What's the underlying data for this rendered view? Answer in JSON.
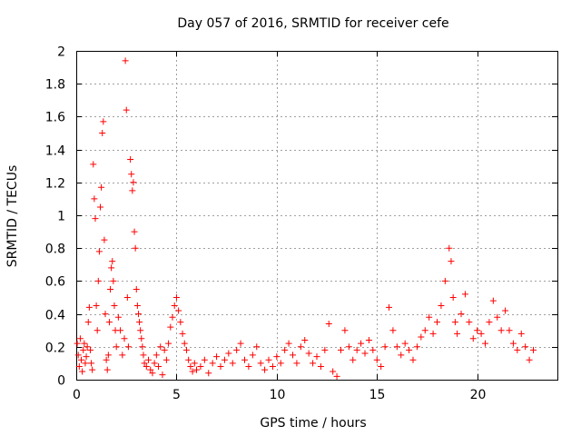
{
  "chart_data": {
    "type": "scatter",
    "title": "Day 057 of 2016, SRMTID for receiver cefe",
    "xlabel": "GPS time / hours",
    "ylabel": "SRMTID / TECUs",
    "xlim": [
      0,
      24
    ],
    "ylim": [
      0,
      2
    ],
    "xticks": [
      "0",
      "5",
      "10",
      "15",
      "20"
    ],
    "yticks": [
      "0",
      "0.2",
      "0.4",
      "0.6",
      "0.8",
      "1",
      "1.2",
      "1.4",
      "1.6",
      "1.8",
      "2"
    ],
    "grid": true,
    "marker": "+",
    "series": [
      {
        "name": "SRMTID",
        "color": "#ff0000",
        "points": [
          [
            0.05,
            0.22
          ],
          [
            0.1,
            0.15
          ],
          [
            0.15,
            0.08
          ],
          [
            0.2,
            0.25
          ],
          [
            0.25,
            0.12
          ],
          [
            0.3,
            0.05
          ],
          [
            0.35,
            0.18
          ],
          [
            0.4,
            0.22
          ],
          [
            0.45,
            0.1
          ],
          [
            0.5,
            0.14
          ],
          [
            0.55,
            0.2
          ],
          [
            0.6,
            0.35
          ],
          [
            0.65,
            0.44
          ],
          [
            0.7,
            0.18
          ],
          [
            0.75,
            0.1
          ],
          [
            0.8,
            0.06
          ],
          [
            0.85,
            1.31
          ],
          [
            0.9,
            1.1
          ],
          [
            0.95,
            0.98
          ],
          [
            1.0,
            0.45
          ],
          [
            1.05,
            0.3
          ],
          [
            1.1,
            0.6
          ],
          [
            1.15,
            0.78
          ],
          [
            1.2,
            1.05
          ],
          [
            1.25,
            1.17
          ],
          [
            1.3,
            1.5
          ],
          [
            1.35,
            1.57
          ],
          [
            1.4,
            0.85
          ],
          [
            1.45,
            0.4
          ],
          [
            1.5,
            0.12
          ],
          [
            1.55,
            0.06
          ],
          [
            1.6,
            0.15
          ],
          [
            1.65,
            0.35
          ],
          [
            1.7,
            0.55
          ],
          [
            1.75,
            0.68
          ],
          [
            1.8,
            0.72
          ],
          [
            1.85,
            0.6
          ],
          [
            1.9,
            0.45
          ],
          [
            1.95,
            0.3
          ],
          [
            2.0,
            0.2
          ],
          [
            2.1,
            0.38
          ],
          [
            2.2,
            0.3
          ],
          [
            2.3,
            0.15
          ],
          [
            2.4,
            0.25
          ],
          [
            2.45,
            1.94
          ],
          [
            2.5,
            1.64
          ],
          [
            2.55,
            0.5
          ],
          [
            2.6,
            0.2
          ],
          [
            2.7,
            1.34
          ],
          [
            2.75,
            1.25
          ],
          [
            2.8,
            1.15
          ],
          [
            2.85,
            1.2
          ],
          [
            2.9,
            0.9
          ],
          [
            2.95,
            0.8
          ],
          [
            3.0,
            0.55
          ],
          [
            3.05,
            0.45
          ],
          [
            3.1,
            0.4
          ],
          [
            3.15,
            0.35
          ],
          [
            3.2,
            0.3
          ],
          [
            3.25,
            0.25
          ],
          [
            3.3,
            0.2
          ],
          [
            3.35,
            0.15
          ],
          [
            3.4,
            0.1
          ],
          [
            3.5,
            0.08
          ],
          [
            3.6,
            0.12
          ],
          [
            3.7,
            0.06
          ],
          [
            3.8,
            0.04
          ],
          [
            3.9,
            0.1
          ],
          [
            4.0,
            0.15
          ],
          [
            4.1,
            0.08
          ],
          [
            4.2,
            0.2
          ],
          [
            4.3,
            0.03
          ],
          [
            4.4,
            0.18
          ],
          [
            4.5,
            0.12
          ],
          [
            4.6,
            0.22
          ],
          [
            4.7,
            0.32
          ],
          [
            4.8,
            0.38
          ],
          [
            4.9,
            0.45
          ],
          [
            5.0,
            0.5
          ],
          [
            5.1,
            0.42
          ],
          [
            5.2,
            0.35
          ],
          [
            5.3,
            0.28
          ],
          [
            5.4,
            0.22
          ],
          [
            5.5,
            0.18
          ],
          [
            5.6,
            0.12
          ],
          [
            5.7,
            0.08
          ],
          [
            5.8,
            0.05
          ],
          [
            5.9,
            0.1
          ],
          [
            6.0,
            0.06
          ],
          [
            6.2,
            0.08
          ],
          [
            6.4,
            0.12
          ],
          [
            6.6,
            0.04
          ],
          [
            6.8,
            0.1
          ],
          [
            7.0,
            0.14
          ],
          [
            7.2,
            0.08
          ],
          [
            7.4,
            0.12
          ],
          [
            7.6,
            0.16
          ],
          [
            7.8,
            0.1
          ],
          [
            8.0,
            0.18
          ],
          [
            8.2,
            0.22
          ],
          [
            8.4,
            0.12
          ],
          [
            8.6,
            0.08
          ],
          [
            8.8,
            0.15
          ],
          [
            9.0,
            0.2
          ],
          [
            9.2,
            0.1
          ],
          [
            9.4,
            0.06
          ],
          [
            9.6,
            0.12
          ],
          [
            9.8,
            0.08
          ],
          [
            10.0,
            0.14
          ],
          [
            10.2,
            0.1
          ],
          [
            10.4,
            0.18
          ],
          [
            10.6,
            0.22
          ],
          [
            10.8,
            0.15
          ],
          [
            11.0,
            0.1
          ],
          [
            11.2,
            0.2
          ],
          [
            11.4,
            0.24
          ],
          [
            11.6,
            0.16
          ],
          [
            11.8,
            0.1
          ],
          [
            12.0,
            0.14
          ],
          [
            12.2,
            0.08
          ],
          [
            12.4,
            0.18
          ],
          [
            12.6,
            0.34
          ],
          [
            12.8,
            0.05
          ],
          [
            13.0,
            0.02
          ],
          [
            13.2,
            0.18
          ],
          [
            13.4,
            0.3
          ],
          [
            13.6,
            0.2
          ],
          [
            13.8,
            0.12
          ],
          [
            14.0,
            0.18
          ],
          [
            14.2,
            0.22
          ],
          [
            14.4,
            0.16
          ],
          [
            14.6,
            0.24
          ],
          [
            14.8,
            0.18
          ],
          [
            15.0,
            0.12
          ],
          [
            15.2,
            0.08
          ],
          [
            15.4,
            0.2
          ],
          [
            15.6,
            0.44
          ],
          [
            15.8,
            0.3
          ],
          [
            16.0,
            0.2
          ],
          [
            16.2,
            0.15
          ],
          [
            16.4,
            0.22
          ],
          [
            16.6,
            0.18
          ],
          [
            16.8,
            0.12
          ],
          [
            17.0,
            0.2
          ],
          [
            17.2,
            0.26
          ],
          [
            17.4,
            0.3
          ],
          [
            17.6,
            0.38
          ],
          [
            17.8,
            0.28
          ],
          [
            18.0,
            0.35
          ],
          [
            18.2,
            0.45
          ],
          [
            18.4,
            0.6
          ],
          [
            18.6,
            0.8
          ],
          [
            18.7,
            0.72
          ],
          [
            18.8,
            0.5
          ],
          [
            18.9,
            0.35
          ],
          [
            19.0,
            0.28
          ],
          [
            19.2,
            0.4
          ],
          [
            19.4,
            0.52
          ],
          [
            19.6,
            0.35
          ],
          [
            19.8,
            0.25
          ],
          [
            20.0,
            0.3
          ],
          [
            20.2,
            0.28
          ],
          [
            20.4,
            0.22
          ],
          [
            20.6,
            0.35
          ],
          [
            20.8,
            0.48
          ],
          [
            21.0,
            0.38
          ],
          [
            21.2,
            0.3
          ],
          [
            21.4,
            0.42
          ],
          [
            21.6,
            0.3
          ],
          [
            21.8,
            0.22
          ],
          [
            22.0,
            0.18
          ],
          [
            22.2,
            0.28
          ],
          [
            22.4,
            0.2
          ],
          [
            22.6,
            0.12
          ],
          [
            22.8,
            0.18
          ]
        ]
      }
    ]
  }
}
